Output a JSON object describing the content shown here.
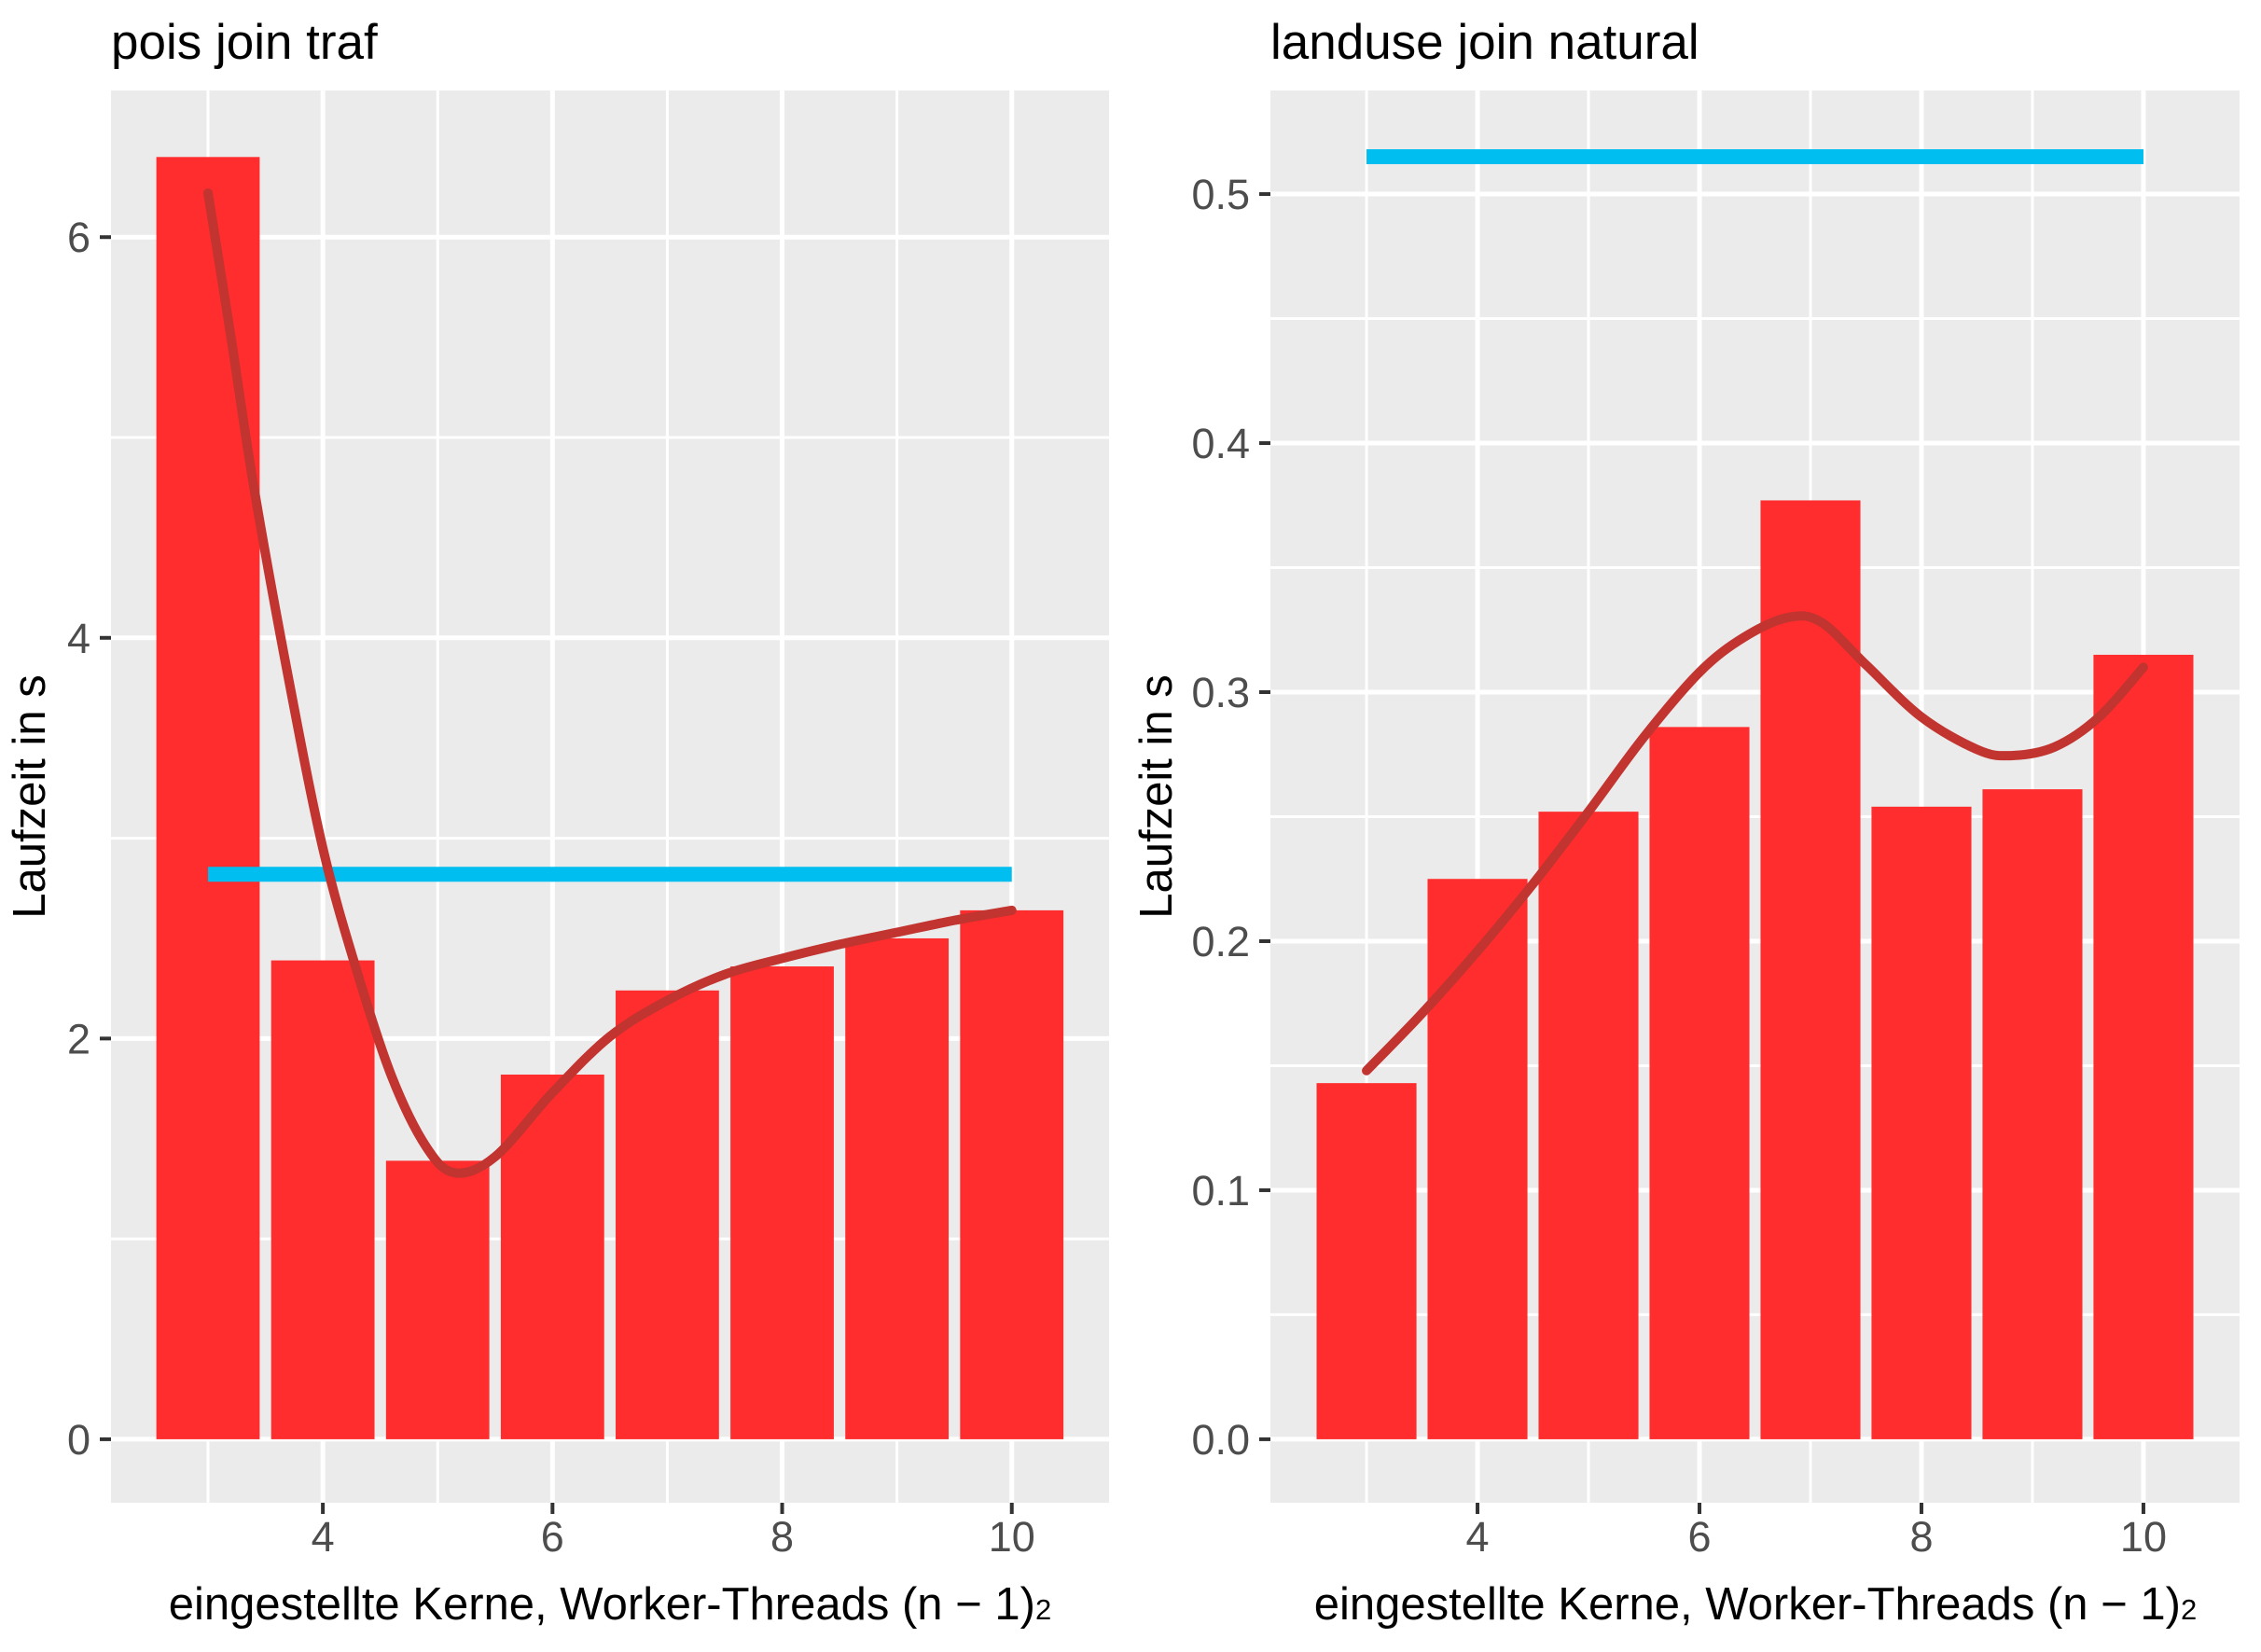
{
  "colors": {
    "bar_fill": "#FF2D2D",
    "smooth_line": "#C23430",
    "mean_line": "#00BEEF",
    "panel_background": "#EBEBEB",
    "gridline": "#FFFFFF",
    "tick_label": "#4D4D4D",
    "tick_mark": "#333333",
    "title_text": "#000000"
  },
  "chart_data": [
    {
      "type": "bar",
      "title": "pois join traf",
      "ylabel": "Laufzeit in s",
      "xlabel_prefix": "eingestellte Kerne, Worker-Threads (n − 1)",
      "xlabel_sup": "2",
      "categories": [
        3,
        4,
        5,
        6,
        7,
        8,
        9,
        10
      ],
      "values": [
        6.4,
        2.39,
        1.39,
        1.82,
        2.24,
        2.36,
        2.5,
        2.64
      ],
      "bar_width": 0.9,
      "mean_runtime_line": {
        "value": 2.82,
        "x_start": 3,
        "x_end": 10
      },
      "smooth_line": [
        [
          3,
          6.22
        ],
        [
          3.2,
          5.5
        ],
        [
          3.4,
          4.75
        ],
        [
          3.7,
          3.8
        ],
        [
          4,
          2.95
        ],
        [
          4.3,
          2.33
        ],
        [
          4.6,
          1.81
        ],
        [
          4.9,
          1.46
        ],
        [
          5.15,
          1.33
        ],
        [
          5.5,
          1.41
        ],
        [
          6,
          1.73
        ],
        [
          6.5,
          2.01
        ],
        [
          7,
          2.19
        ],
        [
          7.5,
          2.32
        ],
        [
          8,
          2.4
        ],
        [
          8.5,
          2.47
        ],
        [
          9,
          2.53
        ],
        [
          9.5,
          2.59
        ],
        [
          10,
          2.64
        ]
      ],
      "x_ticks": [
        4,
        6,
        8,
        10
      ],
      "x_tick_labels": [
        "4",
        "6",
        "8",
        "10"
      ],
      "x_minor": [
        3,
        5,
        7,
        9
      ],
      "y_ticks": [
        0,
        2,
        4,
        6
      ],
      "y_tick_labels": [
        "0",
        "2",
        "4",
        "6"
      ],
      "y_minor": [
        1,
        3,
        5
      ],
      "xlim": [
        2.155,
        10.847
      ],
      "ylim": [
        -0.317,
        6.732
      ],
      "grid": true,
      "legend": "none"
    },
    {
      "type": "bar",
      "title": "landuse join natural",
      "ylabel": "Laufzeit in s",
      "xlabel_prefix": "eingestellte Kerne, Worker-Threads (n − 1)",
      "xlabel_sup": "2",
      "categories": [
        3,
        4,
        5,
        6,
        7,
        8,
        9,
        10
      ],
      "values": [
        0.143,
        0.225,
        0.252,
        0.286,
        0.377,
        0.254,
        0.261,
        0.315
      ],
      "bar_width": 0.9,
      "mean_runtime_line": {
        "value": 0.515,
        "x_start": 3,
        "x_end": 10
      },
      "smooth_line": [
        [
          3,
          0.148
        ],
        [
          3.5,
          0.171
        ],
        [
          4,
          0.196
        ],
        [
          4.5,
          0.223
        ],
        [
          5,
          0.252
        ],
        [
          5.5,
          0.282
        ],
        [
          6,
          0.308
        ],
        [
          6.4,
          0.322
        ],
        [
          6.8,
          0.33
        ],
        [
          7.1,
          0.328
        ],
        [
          7.5,
          0.311
        ],
        [
          8,
          0.29
        ],
        [
          8.5,
          0.277
        ],
        [
          8.8,
          0.2745
        ],
        [
          9.2,
          0.278
        ],
        [
          9.6,
          0.29
        ],
        [
          10,
          0.31
        ]
      ],
      "x_ticks": [
        4,
        6,
        8,
        10
      ],
      "x_tick_labels": [
        "4",
        "6",
        "8",
        "10"
      ],
      "x_minor": [
        3,
        5,
        7,
        9
      ],
      "y_ticks": [
        0,
        0.1,
        0.2,
        0.3,
        0.4,
        0.5
      ],
      "y_tick_labels": [
        "0.0",
        "0.1",
        "0.2",
        "0.3",
        "0.4",
        "0.5"
      ],
      "y_minor": [
        0.05,
        0.15,
        0.25,
        0.35,
        0.45
      ],
      "xlim": [
        2.134,
        10.866
      ],
      "ylim": [
        -0.0255,
        0.5416
      ],
      "grid": true,
      "legend": "none"
    }
  ]
}
